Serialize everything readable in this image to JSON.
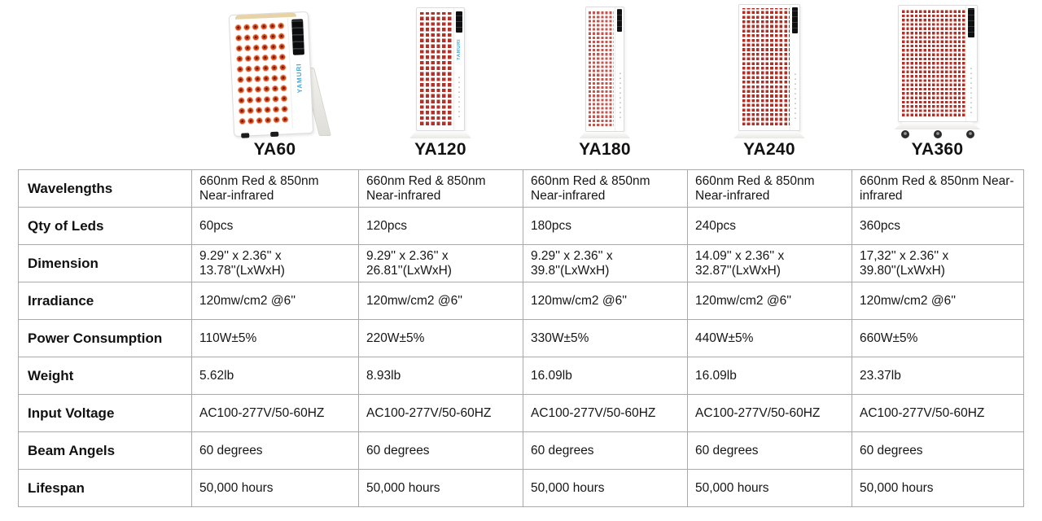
{
  "products": [
    {
      "name": "YA60",
      "side_logo": "YAMURI"
    },
    {
      "name": "YA120",
      "side_logo": "YAMURI"
    },
    {
      "name": "YA180"
    },
    {
      "name": "YA240"
    },
    {
      "name": "YA360"
    }
  ],
  "table": {
    "rows": [
      {
        "key": "wavelengths",
        "label": "Wavelengths",
        "values": [
          "660nm Red & 850nm Near-infrared",
          "660nm Red & 850nm Near-infrared",
          "660nm Red & 850nm Near-infrared",
          "660nm Red & 850nm Near-infrared",
          "660nm Red & 850nm Near-infrared"
        ]
      },
      {
        "key": "qty-of-leds",
        "label": "Qty of Leds",
        "values": [
          "60pcs",
          "120pcs",
          "180pcs",
          "240pcs",
          "360pcs"
        ]
      },
      {
        "key": "dimension",
        "label": "Dimension",
        "values": [
          "9.29'' x 2.36'' x 13.78''(LxWxH)",
          "9.29'' x 2.36'' x 26.81''(LxWxH)",
          "9.29'' x 2.36'' x 39.8''(LxWxH)",
          "14.09'' x 2.36'' x 32.87''(LxWxH)",
          "17,32'' x 2.36'' x 39.80''(LxWxH)"
        ]
      },
      {
        "key": "irradiance",
        "label": "Irradiance",
        "values": [
          "120mw/cm2 @6''",
          "120mw/cm2 @6''",
          "120mw/cm2 @6''",
          "120mw/cm2 @6''",
          "120mw/cm2 @6''"
        ]
      },
      {
        "key": "power-consumption",
        "label": "Power Consumption",
        "values": [
          "110W±5%",
          "220W±5%",
          "330W±5%",
          "440W±5%",
          "660W±5%"
        ]
      },
      {
        "key": "weight",
        "label": "Weight",
        "values": [
          "5.62lb",
          "8.93lb",
          "16.09lb",
          "16.09lb",
          "23.37lb"
        ]
      },
      {
        "key": "input-voltage",
        "label": "Input Voltage",
        "values": [
          "AC100-277V/50-60HZ",
          "AC100-277V/50-60HZ",
          "AC100-277V/50-60HZ",
          "AC100-277V/50-60HZ",
          "AC100-277V/50-60HZ"
        ]
      },
      {
        "key": "beam-angels",
        "label": "Beam Angels",
        "values": [
          "60 degrees",
          "60 degrees",
          "60 degrees",
          "60 degrees",
          "60 degrees"
        ]
      },
      {
        "key": "lifespan",
        "label": "Lifespan",
        "values": [
          "50,000 hours",
          "50,000 hours",
          "50,000 hours",
          "50,000 hours",
          "50,000 hours"
        ]
      }
    ]
  },
  "colors": {
    "led_red": "#b1322a",
    "led_orange_red": "#d24418",
    "brand_logo_blue": "#3fa9d4",
    "table_border_gray": "#aaaaaa",
    "display_black": "#101010"
  }
}
